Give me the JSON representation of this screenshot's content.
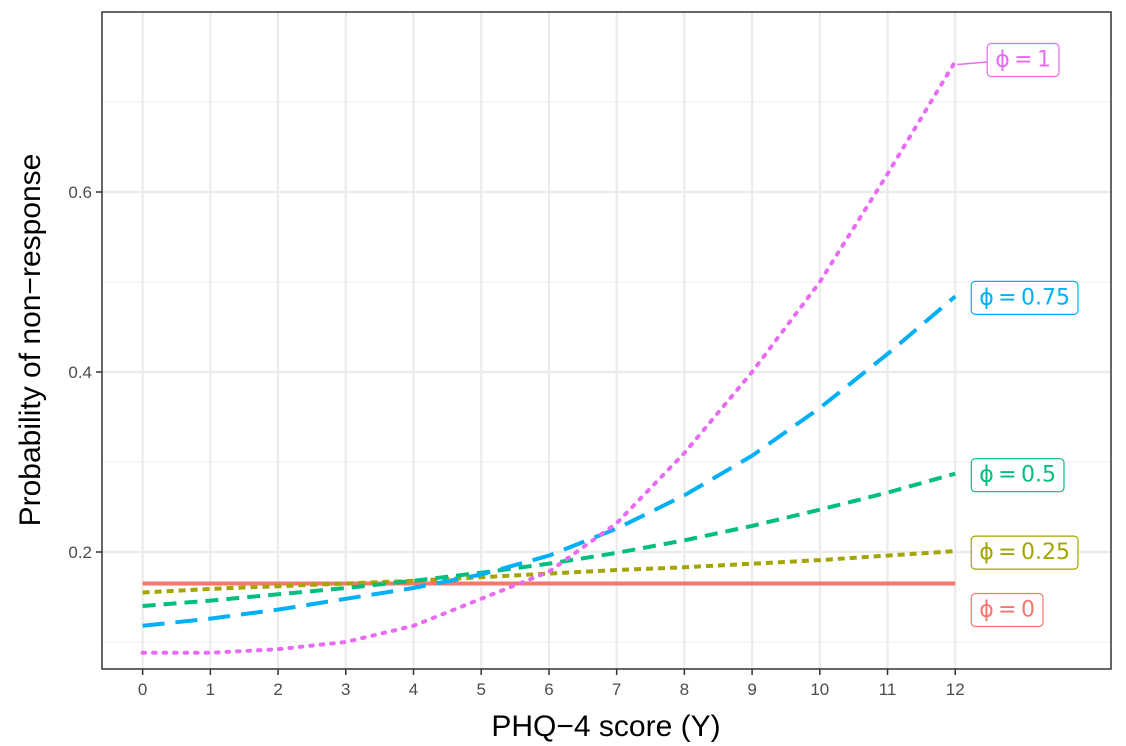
{
  "chart_data": {
    "type": "line",
    "title": "",
    "xlabel": "PHQ−4 score (Y)",
    "ylabel": "Probability of non−response",
    "xlim": [
      -0.6,
      14.3
    ],
    "ylim": [
      0.07,
      0.8
    ],
    "x_ticks": [
      0,
      1,
      2,
      3,
      4,
      5,
      6,
      7,
      8,
      9,
      10,
      11,
      12
    ],
    "x_tick_labels": [
      "0",
      "1",
      "2",
      "3",
      "4",
      "5",
      "6",
      "7",
      "8",
      "9",
      "10",
      "11",
      "12"
    ],
    "y_ticks": [
      0.2,
      0.4,
      0.6
    ],
    "y_tick_labels": [
      "0.2",
      "0.4",
      "0.6"
    ],
    "grid": true,
    "legend": "direct labels at right end of each line",
    "x": [
      0,
      1,
      2,
      3,
      4,
      5,
      6,
      7,
      8,
      9,
      10,
      11,
      12
    ],
    "series": [
      {
        "name": "ϕ = 0",
        "label_text": "ϕ = 0",
        "color": "#f8766d",
        "dash": "solid",
        "values": [
          0.165,
          0.165,
          0.165,
          0.165,
          0.165,
          0.165,
          0.165,
          0.165,
          0.165,
          0.165,
          0.165,
          0.165,
          0.165
        ]
      },
      {
        "name": "ϕ = 0.25",
        "label_text": "ϕ = 0.25",
        "color": "#a3a500",
        "dash": "short-dash",
        "values": [
          0.155,
          0.159,
          0.162,
          0.165,
          0.168,
          0.172,
          0.176,
          0.18,
          0.183,
          0.187,
          0.191,
          0.196,
          0.201
        ]
      },
      {
        "name": "ϕ = 0.5",
        "label_text": "ϕ = 0.5",
        "color": "#00bf7d",
        "dash": "dash",
        "values": [
          0.14,
          0.146,
          0.153,
          0.16,
          0.168,
          0.177,
          0.187,
          0.199,
          0.213,
          0.229,
          0.247,
          0.266,
          0.287
        ]
      },
      {
        "name": "ϕ = 0.75",
        "label_text": "ϕ = 0.75",
        "color": "#00b0f6",
        "dash": "long-dash",
        "values": [
          0.118,
          0.126,
          0.136,
          0.148,
          0.16,
          0.175,
          0.196,
          0.226,
          0.263,
          0.307,
          0.36,
          0.42,
          0.484
        ]
      },
      {
        "name": "ϕ = 1",
        "label_text": "ϕ = 1",
        "color": "#e76bf3",
        "dash": "dotted",
        "values": [
          0.088,
          0.088,
          0.092,
          0.1,
          0.118,
          0.148,
          0.178,
          0.232,
          0.31,
          0.4,
          0.5,
          0.62,
          0.745
        ]
      }
    ]
  }
}
